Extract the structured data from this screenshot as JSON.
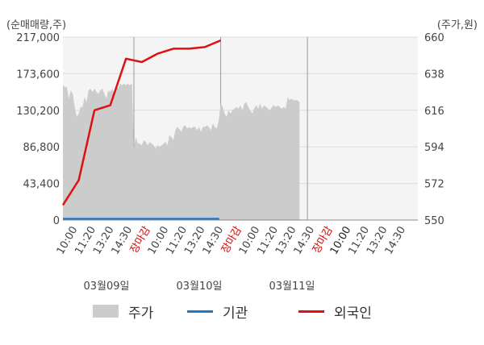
{
  "chart_data": {
    "type": "line",
    "left_axis_label": "(순매매량,주)",
    "right_axis_label": "(주가,원)",
    "y_left": {
      "ticks": [
        "217,000",
        "173,600",
        "130,200",
        "86,800",
        "43,400",
        "0"
      ],
      "min": 0,
      "max": 217000
    },
    "y_right": {
      "ticks": [
        "660",
        "638",
        "616",
        "594",
        "572",
        "550"
      ],
      "min": 550,
      "max": 660
    },
    "x_tick_labels": [
      {
        "text": "10:00",
        "color": "#444444"
      },
      {
        "text": "11:20",
        "color": "#444444"
      },
      {
        "text": "13:20",
        "color": "#444444"
      },
      {
        "text": "14:30",
        "color": "#444444"
      },
      {
        "text": "장마감",
        "color": "#dd0000"
      },
      {
        "text": "10:00",
        "color": "#444444"
      },
      {
        "text": "11:20",
        "color": "#444444"
      },
      {
        "text": "13:20",
        "color": "#444444"
      },
      {
        "text": "14:30",
        "color": "#444444"
      },
      {
        "text": "장마감",
        "color": "#dd0000"
      },
      {
        "text": "10:00",
        "color": "#444444"
      },
      {
        "text": "11:20",
        "color": "#444444"
      },
      {
        "text": "13:20",
        "color": "#444444"
      },
      {
        "text": "14:30",
        "color": "#444444"
      },
      {
        "text": "장마감",
        "color": "#dd0000"
      },
      {
        "text": "10:00",
        "color": "#222222"
      },
      {
        "text": "11:20",
        "color": "#444444"
      },
      {
        "text": "13:20",
        "color": "#444444"
      },
      {
        "text": "14:30",
        "color": "#444444"
      }
    ],
    "dates": [
      "03월09일",
      "03월10일",
      "03월11일"
    ],
    "series": [
      {
        "name": "주가",
        "kind": "area",
        "color": "#cccccc",
        "axis": "right",
        "points": [
          [
            0,
            631
          ],
          [
            0.5,
            630
          ],
          [
            1,
            630
          ],
          [
            1.5,
            623
          ],
          [
            2,
            628
          ],
          [
            2.5,
            626
          ],
          [
            3,
            618
          ],
          [
            3.5,
            612
          ],
          [
            4,
            614
          ],
          [
            4.5,
            618
          ],
          [
            5,
            618
          ],
          [
            5.5,
            624
          ],
          [
            6,
            621
          ],
          [
            6.5,
            628
          ],
          [
            7,
            629
          ],
          [
            7.5,
            627
          ],
          [
            8,
            629
          ],
          [
            8.5,
            627
          ],
          [
            9,
            626
          ],
          [
            9.5,
            628
          ],
          [
            10,
            629
          ],
          [
            10.5,
            626
          ],
          [
            11,
            623
          ],
          [
            11.5,
            628
          ],
          [
            12,
            627
          ],
          [
            12.5,
            629
          ],
          [
            13,
            626
          ],
          [
            13.5,
            631
          ],
          [
            14,
            629
          ],
          [
            14.5,
            632
          ],
          [
            15,
            631
          ],
          [
            15.5,
            632
          ],
          [
            16,
            631
          ],
          [
            16.5,
            632
          ],
          [
            17,
            631
          ],
          [
            17.5,
            632
          ],
          [
            18,
            593
          ],
          [
            18.5,
            600
          ],
          [
            19,
            596
          ],
          [
            19.5,
            596
          ],
          [
            20,
            595
          ],
          [
            20.5,
            598
          ],
          [
            21,
            597
          ],
          [
            21.5,
            595
          ],
          [
            22,
            597
          ],
          [
            22.5,
            596
          ],
          [
            23,
            595
          ],
          [
            23.5,
            593
          ],
          [
            24,
            595
          ],
          [
            24.5,
            594
          ],
          [
            25,
            595
          ],
          [
            25.5,
            596
          ],
          [
            26,
            597
          ],
          [
            26.5,
            595
          ],
          [
            27,
            601
          ],
          [
            27.5,
            600
          ],
          [
            28,
            598
          ],
          [
            28.5,
            604
          ],
          [
            29,
            606
          ],
          [
            29.5,
            605
          ],
          [
            30,
            603
          ],
          [
            30.5,
            606
          ],
          [
            31,
            607
          ],
          [
            31.5,
            605
          ],
          [
            32,
            606
          ],
          [
            32.5,
            605
          ],
          [
            33,
            606
          ],
          [
            33.5,
            606
          ],
          [
            34,
            604
          ],
          [
            34.5,
            606
          ],
          [
            35,
            603
          ],
          [
            35.5,
            606
          ],
          [
            36,
            606
          ],
          [
            36.5,
            607
          ],
          [
            37,
            606
          ],
          [
            37.5,
            604
          ],
          [
            38,
            608
          ],
          [
            38.5,
            606
          ],
          [
            39,
            605
          ],
          [
            39.5,
            610
          ],
          [
            40,
            620
          ],
          [
            40.5,
            618
          ],
          [
            41,
            614
          ],
          [
            41.5,
            612
          ],
          [
            42,
            616
          ],
          [
            42.5,
            614
          ],
          [
            43,
            616
          ],
          [
            43.5,
            617
          ],
          [
            44,
            618
          ],
          [
            44.5,
            617
          ],
          [
            45,
            619
          ],
          [
            45.5,
            616
          ],
          [
            46,
            620
          ],
          [
            46.5,
            621
          ],
          [
            47,
            618
          ],
          [
            47.5,
            616
          ],
          [
            48,
            614
          ],
          [
            48.5,
            617
          ],
          [
            49,
            619
          ],
          [
            49.5,
            617
          ],
          [
            50,
            620
          ],
          [
            50.5,
            617
          ],
          [
            51,
            619
          ],
          [
            51.5,
            618
          ],
          [
            52,
            617
          ],
          [
            52.5,
            616
          ],
          [
            53,
            618
          ],
          [
            53.5,
            619
          ],
          [
            54,
            618
          ],
          [
            54.5,
            619
          ],
          [
            55,
            618
          ],
          [
            55.5,
            617
          ],
          [
            56,
            618
          ],
          [
            56.5,
            617
          ],
          [
            57,
            624
          ],
          [
            57.5,
            622
          ],
          [
            58,
            623
          ],
          [
            58.5,
            622
          ],
          [
            59,
            622
          ],
          [
            59.5,
            622
          ],
          [
            60,
            621
          ]
        ]
      },
      {
        "name": "기관",
        "kind": "line",
        "color": "#1f78c8",
        "axis": "left",
        "points": [
          [
            0,
            1400
          ],
          [
            39.6,
            1400
          ]
        ]
      },
      {
        "name": "외국인",
        "kind": "line",
        "color": "#dd1111",
        "axis": "right",
        "points": [
          [
            0,
            559
          ],
          [
            4,
            574
          ],
          [
            8,
            616
          ],
          [
            12,
            619
          ],
          [
            16,
            647
          ],
          [
            20,
            645
          ],
          [
            24,
            650
          ],
          [
            28,
            653
          ],
          [
            32,
            653
          ],
          [
            36,
            654
          ],
          [
            40,
            658
          ]
        ]
      }
    ],
    "x_range": [
      0,
      90
    ],
    "grid": true
  },
  "legend": [
    {
      "label": "주가",
      "color": "#cccccc",
      "kind": "area"
    },
    {
      "label": "기관",
      "color": "#1f78c8",
      "kind": "line"
    },
    {
      "label": "외국인",
      "color": "#dd1111",
      "kind": "line"
    }
  ]
}
